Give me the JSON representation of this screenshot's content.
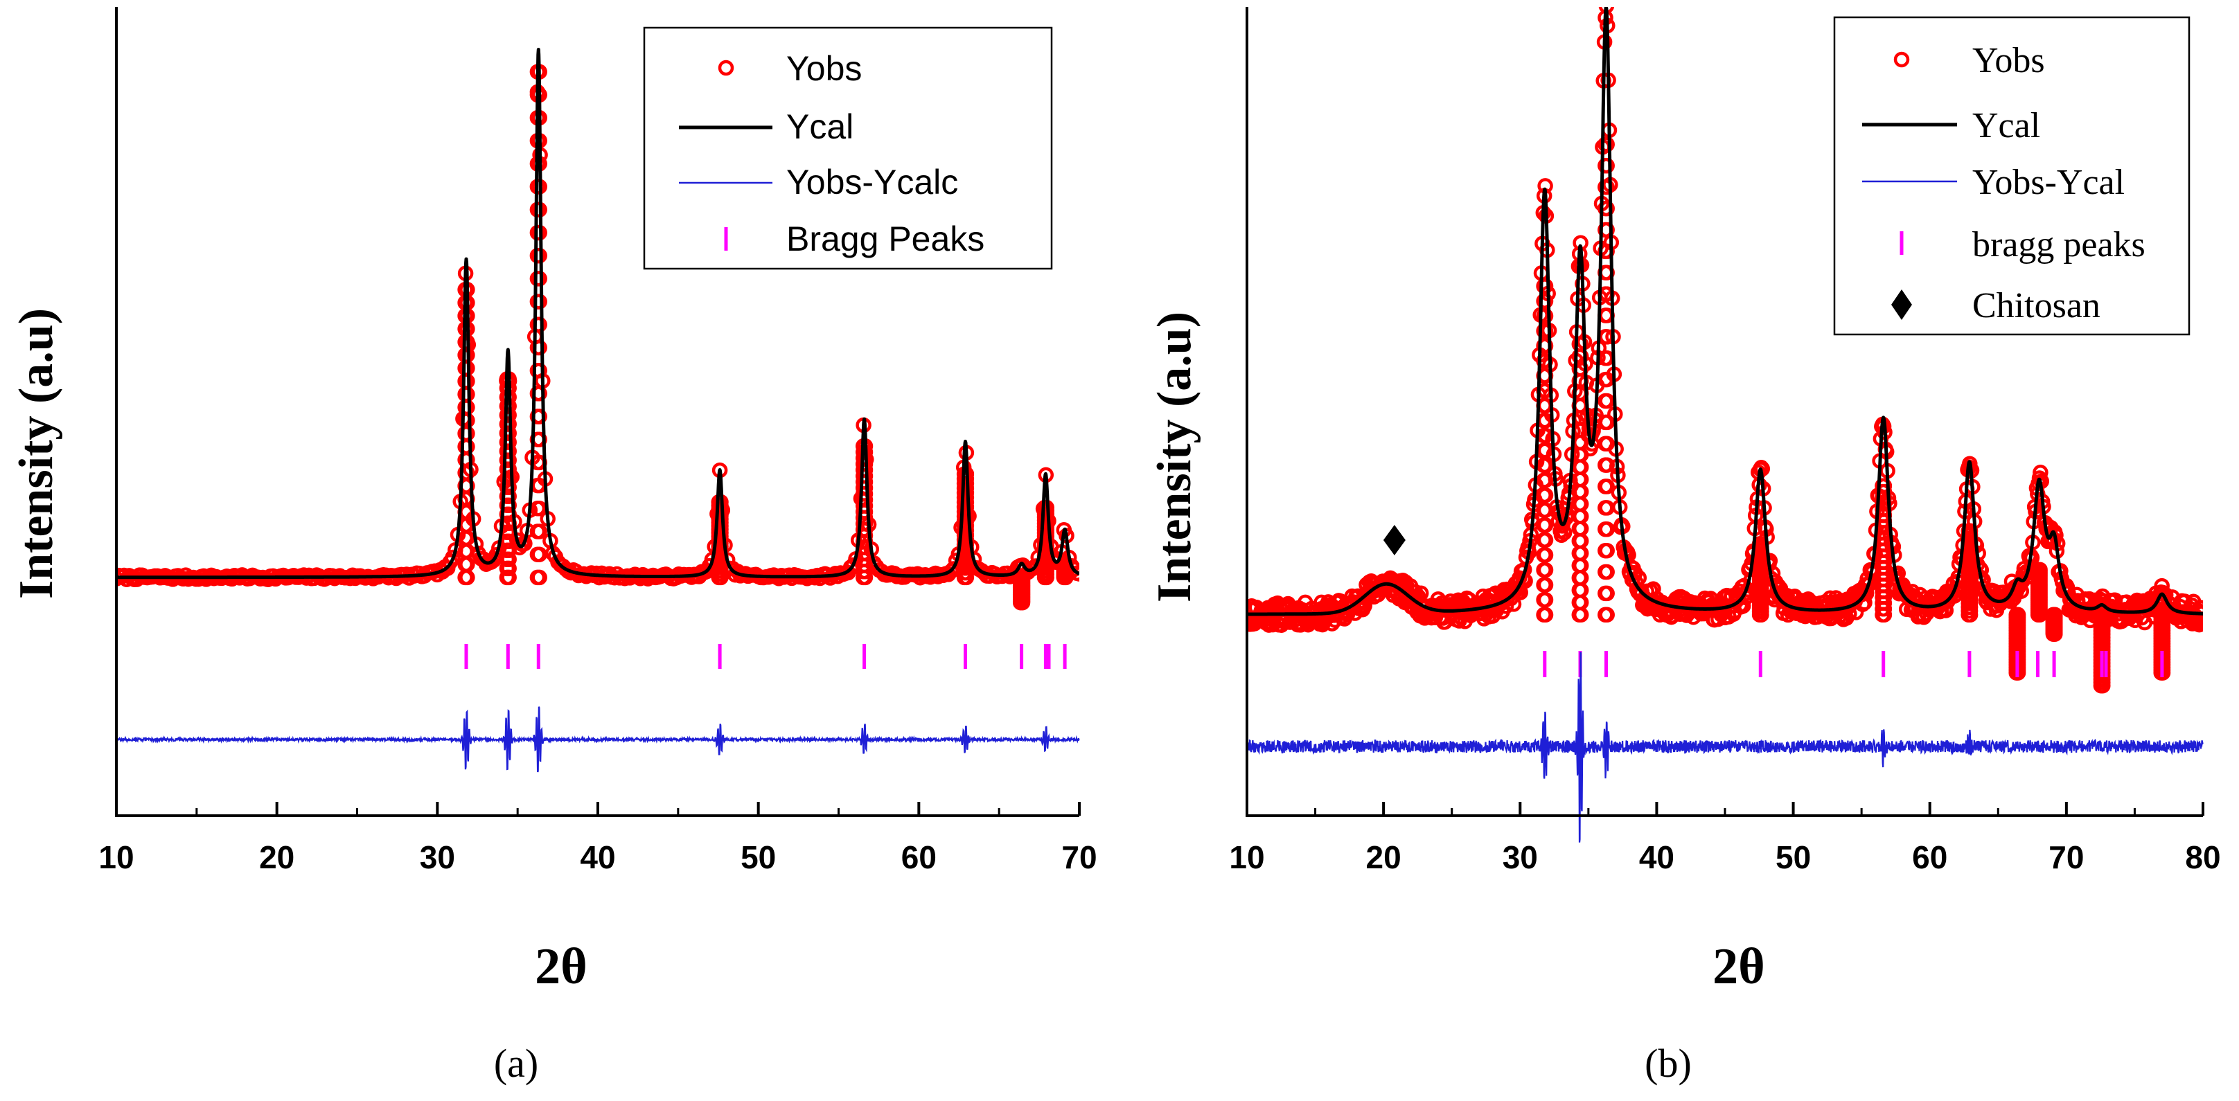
{
  "chart_data": [
    {
      "type": "line",
      "panel_label": "(a)",
      "xlabel": "2θ",
      "ylabel": "Intensity (a.u)",
      "xlim": [
        10,
        70
      ],
      "xticks": [
        10,
        20,
        30,
        40,
        50,
        60,
        70
      ],
      "tick_labels": [
        "10",
        "20",
        "30",
        "40",
        "50",
        "60",
        "70"
      ],
      "legend_position": "top-right",
      "legend": [
        {
          "label": "Yobs",
          "marker": "circle",
          "color": "#ff0000"
        },
        {
          "label": "Ycal",
          "marker": "line",
          "color": "#000000"
        },
        {
          "label": "Yobs-Ycalc",
          "marker": "thin-line",
          "color": "#1f1fd6"
        },
        {
          "label": "Bragg Peaks",
          "marker": "vbar",
          "color": "#ff00ff"
        }
      ],
      "baseline": 0.075,
      "noise": 0.004,
      "peaks": [
        {
          "pos": 31.8,
          "height": 0.56,
          "width": 0.2,
          "obs": 0.59
        },
        {
          "pos": 34.4,
          "height": 0.39,
          "width": 0.2,
          "obs": 0.43
        },
        {
          "pos": 36.3,
          "height": 0.93,
          "width": 0.2,
          "obs": 0.98
        },
        {
          "pos": 47.6,
          "height": 0.19,
          "width": 0.2,
          "obs": 0.21
        },
        {
          "pos": 56.6,
          "height": 0.28,
          "width": 0.2,
          "obs": 0.31
        },
        {
          "pos": 62.9,
          "height": 0.24,
          "width": 0.2,
          "obs": 0.26
        },
        {
          "pos": 66.4,
          "height": 0.02,
          "width": 0.25,
          "obs": 0.03
        },
        {
          "pos": 67.9,
          "height": 0.18,
          "width": 0.2,
          "obs": 0.2
        },
        {
          "pos": 69.1,
          "height": 0.08,
          "width": 0.22,
          "obs": 0.1
        }
      ],
      "bragg_positions": [
        31.8,
        34.4,
        36.3,
        47.6,
        56.6,
        62.9,
        66.4,
        67.9,
        68.1,
        69.1
      ],
      "diff_spikes": [
        {
          "pos": 31.8,
          "amp": 0.05
        },
        {
          "pos": 34.4,
          "amp": 0.05
        },
        {
          "pos": 36.3,
          "amp": 0.055
        },
        {
          "pos": 47.6,
          "amp": 0.025
        },
        {
          "pos": 56.6,
          "amp": 0.025
        },
        {
          "pos": 62.9,
          "amp": 0.022
        },
        {
          "pos": 67.9,
          "amp": 0.02
        }
      ]
    },
    {
      "type": "line",
      "panel_label": "(b)",
      "xlabel": "2θ",
      "ylabel": "Intensity (a.u)",
      "xlim": [
        10,
        80
      ],
      "xticks": [
        10,
        20,
        30,
        40,
        50,
        60,
        70,
        80
      ],
      "tick_labels": [
        "10",
        "20",
        "30",
        "40",
        "50",
        "60",
        "70",
        "80"
      ],
      "legend_position": "top-right",
      "legend": [
        {
          "label": "Yobs",
          "marker": "circle",
          "color": "#ff0000"
        },
        {
          "label": "Ycal",
          "marker": "line",
          "color": "#000000"
        },
        {
          "label": "Yobs-Ycal",
          "marker": "thin-line",
          "color": "#1f1fd6"
        },
        {
          "label": "bragg peaks",
          "marker": "vbar",
          "color": "#ff00ff"
        },
        {
          "label": "Chitosan",
          "marker": "diamond",
          "color": "#000000"
        }
      ],
      "baseline": 0.13,
      "noise": 0.018,
      "broad_hump": {
        "pos": 20.2,
        "height": 0.045,
        "width": 2.2
      },
      "chitosan_marker_x": 20.8,
      "peaks": [
        {
          "pos": 31.8,
          "height": 0.63,
          "width": 0.45,
          "obs": 0.64
        },
        {
          "pos": 34.4,
          "height": 0.5,
          "width": 0.45,
          "obs": 0.55
        },
        {
          "pos": 36.3,
          "height": 0.9,
          "width": 0.45,
          "obs": 0.86
        },
        {
          "pos": 47.6,
          "height": 0.22,
          "width": 0.45,
          "obs": 0.24
        },
        {
          "pos": 56.6,
          "height": 0.3,
          "width": 0.45,
          "obs": 0.33
        },
        {
          "pos": 62.9,
          "height": 0.23,
          "width": 0.45,
          "obs": 0.26
        },
        {
          "pos": 66.4,
          "height": 0.03,
          "width": 0.45,
          "obs": 0.04
        },
        {
          "pos": 68.0,
          "height": 0.19,
          "width": 0.5,
          "obs": 0.2
        },
        {
          "pos": 69.1,
          "height": 0.09,
          "width": 0.45,
          "obs": 0.1
        },
        {
          "pos": 72.6,
          "height": 0.01,
          "width": 0.4,
          "obs": 0.02
        },
        {
          "pos": 77.0,
          "height": 0.03,
          "width": 0.45,
          "obs": 0.04
        }
      ],
      "bragg_positions": [
        31.8,
        34.4,
        36.3,
        47.6,
        56.6,
        62.9,
        66.4,
        67.9,
        69.1,
        72.6,
        72.9,
        77.0
      ],
      "diff_spikes": [
        {
          "pos": 31.8,
          "amp": 0.06
        },
        {
          "pos": 34.4,
          "amp": 0.16
        },
        {
          "pos": 36.3,
          "amp": 0.05
        },
        {
          "pos": 56.6,
          "amp": 0.03
        },
        {
          "pos": 62.9,
          "amp": 0.02
        }
      ]
    }
  ]
}
